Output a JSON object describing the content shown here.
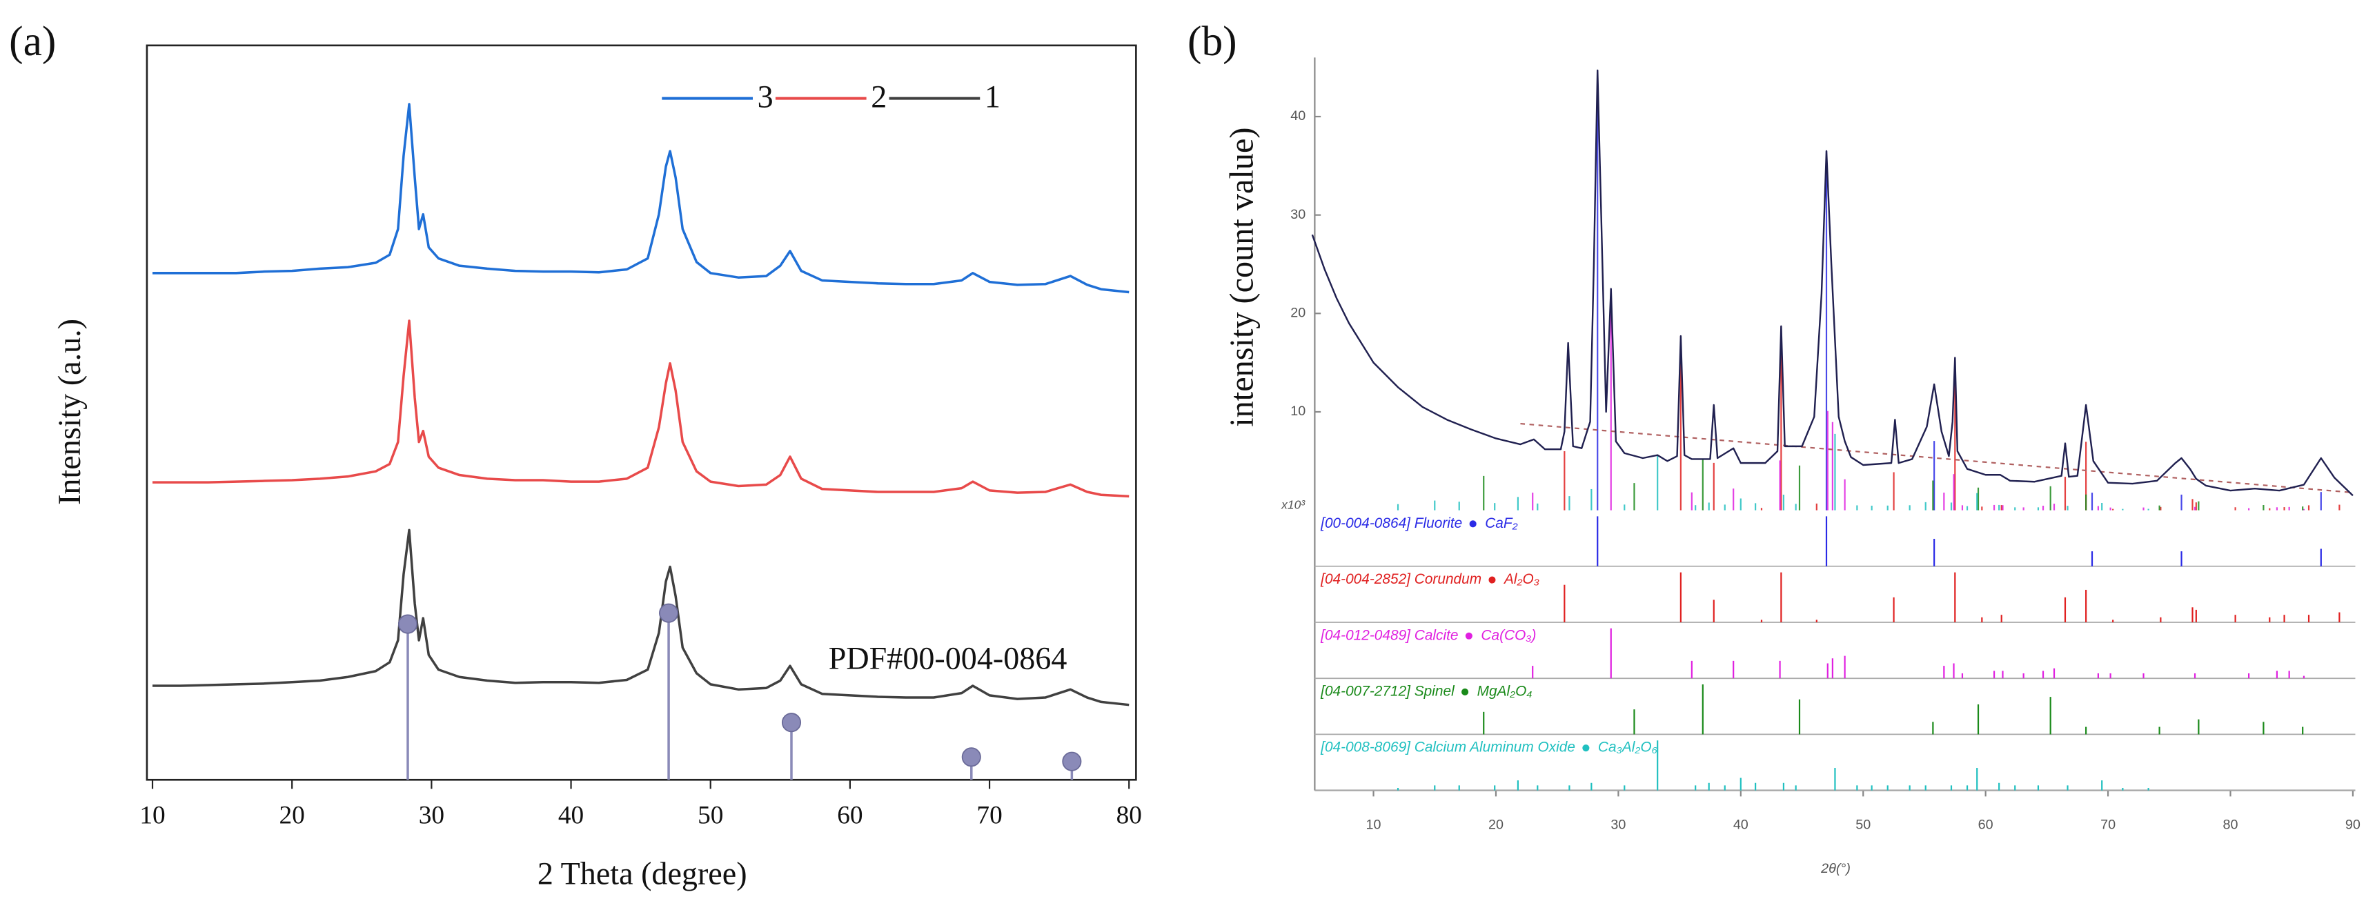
{
  "chart_data": [
    {
      "type": "line",
      "panel_label": "(a)",
      "xlabel": "2 Theta (degree)",
      "ylabel": "Intensity (a.u.)",
      "annotation": "PDF#00-004-0864",
      "xlim": [
        9.6,
        80.5
      ],
      "xticks": [
        10,
        20,
        30,
        40,
        50,
        60,
        70,
        80
      ],
      "ylim": [
        0,
        100
      ],
      "x": [
        10,
        12,
        14,
        16,
        18,
        20,
        22,
        24,
        26,
        27,
        27.6,
        28,
        28.4,
        28.8,
        29.1,
        29.4,
        29.8,
        30.5,
        32,
        34,
        36,
        38,
        40,
        42,
        44,
        45.5,
        46.3,
        46.8,
        47.1,
        47.5,
        48,
        49,
        50,
        52,
        54,
        55,
        55.7,
        56.5,
        58,
        60,
        62,
        64,
        66,
        68,
        68.8,
        70,
        72,
        74,
        75.8,
        77,
        78,
        80
      ],
      "series": [
        {
          "name": "3",
          "color": "#1f6fd6",
          "values": [
            69,
            69,
            69,
            69,
            69.2,
            69.3,
            69.6,
            69.8,
            70.4,
            71.5,
            75,
            85,
            92,
            82,
            75,
            77,
            72.5,
            71,
            70,
            69.6,
            69.3,
            69.2,
            69.2,
            69.1,
            69.5,
            71,
            77,
            83.5,
            85.6,
            82,
            75,
            70.5,
            69,
            68.4,
            68.6,
            70,
            72,
            69.3,
            68,
            67.8,
            67.6,
            67.5,
            67.5,
            68,
            69,
            67.8,
            67.4,
            67.5,
            68.6,
            67.4,
            66.8,
            66.4
          ]
        },
        {
          "name": "2",
          "color": "#e84a4a",
          "values": [
            40.5,
            40.5,
            40.5,
            40.6,
            40.7,
            40.8,
            41,
            41.3,
            42,
            43,
            46,
            55,
            62.5,
            52,
            46,
            47.5,
            44,
            42.5,
            41.5,
            41,
            40.8,
            40.8,
            40.6,
            40.6,
            41,
            42.5,
            48,
            54,
            56.7,
            53,
            46,
            42,
            40.6,
            40,
            40.2,
            41.5,
            44,
            41,
            39.6,
            39.4,
            39.2,
            39.2,
            39.2,
            39.7,
            40.6,
            39.4,
            39.1,
            39.2,
            40.2,
            39.2,
            38.8,
            38.6
          ]
        },
        {
          "name": "1",
          "color": "#404040",
          "values": [
            12.8,
            12.8,
            12.9,
            13,
            13.1,
            13.3,
            13.5,
            14,
            14.8,
            16,
            19,
            28,
            34,
            24,
            19,
            22,
            17,
            15,
            14,
            13.5,
            13.2,
            13.3,
            13.3,
            13.2,
            13.6,
            15,
            20,
            27,
            29,
            25,
            18,
            14.5,
            13,
            12.3,
            12.5,
            13.5,
            15.5,
            13,
            11.7,
            11.5,
            11.3,
            11.2,
            11.2,
            11.8,
            12.8,
            11.5,
            11,
            11.2,
            12.3,
            11.2,
            10.6,
            10.2
          ]
        }
      ],
      "reference": {
        "color": "#8a8ab8",
        "x": [
          28.3,
          47.0,
          55.8,
          68.7,
          75.9
        ],
        "values": [
          21.2,
          22.7,
          7.8,
          3.1,
          2.5
        ]
      }
    },
    {
      "type": "line",
      "panel_label": "(b)",
      "xlabel": "2θ(°)",
      "ylabel": "intensity (count value)",
      "y_multiplier_label": "x10³",
      "xlim": [
        5.2,
        90.2
      ],
      "xticks": [
        10,
        20,
        30,
        40,
        50,
        60,
        70,
        80,
        90
      ],
      "ylim": [
        0,
        46
      ],
      "yticks": [
        10,
        20,
        30,
        40
      ],
      "x": [
        5,
        6,
        7,
        8,
        10,
        12,
        14,
        16,
        18,
        20,
        22,
        23.1,
        24,
        25.3,
        25.6,
        25.9,
        26.3,
        27,
        27.7,
        28.0,
        28.3,
        28.6,
        29.0,
        29.4,
        29.8,
        30.5,
        32,
        33.2,
        34,
        34.8,
        35.1,
        35.4,
        36,
        37.5,
        37.8,
        38.1,
        39.4,
        40,
        42,
        43.0,
        43.3,
        43.6,
        45,
        46,
        46.6,
        47.0,
        47.4,
        48,
        48.5,
        49,
        50,
        52.3,
        52.6,
        52.9,
        54,
        55.2,
        55.8,
        56.4,
        57,
        57.3,
        57.5,
        57.7,
        58.5,
        60,
        61.2,
        62,
        64,
        66.2,
        66.5,
        66.8,
        67.5,
        68.2,
        68.8,
        70,
        72,
        74,
        75.5,
        76,
        76.7,
        77.2,
        78,
        80,
        82,
        84,
        86,
        87.4,
        88.5,
        90
      ],
      "series": [
        {
          "color": "#202050",
          "values": [
            28,
            24.5,
            21.5,
            19,
            15,
            12.5,
            10.5,
            9.2,
            8.2,
            7.3,
            6.7,
            7.2,
            6.2,
            6.2,
            8,
            17,
            6.5,
            6.3,
            9,
            25,
            44.7,
            30,
            10,
            22.5,
            7,
            5.8,
            5.3,
            5.6,
            5.0,
            5.5,
            17.7,
            5.6,
            5.2,
            5.2,
            10.7,
            5.3,
            6.3,
            4.8,
            4.8,
            6,
            18.7,
            6.5,
            6.5,
            9.5,
            22,
            36.5,
            25,
            9.5,
            7,
            5.4,
            4.6,
            4.8,
            9.2,
            4.8,
            5.2,
            8.5,
            12.8,
            8,
            5.5,
            9,
            15.5,
            6,
            4.2,
            3.6,
            3.6,
            3,
            2.9,
            3.5,
            6.8,
            3.4,
            3.5,
            10.7,
            5,
            2.8,
            2.7,
            3,
            4.8,
            5.3,
            4.2,
            3.2,
            2.5,
            2,
            2.2,
            2,
            2.6,
            5.3,
            3.3,
            1.5
          ]
        }
      ],
      "baseline": {
        "color": "#b06060",
        "x": [
          22,
          90
        ],
        "values": [
          8.8,
          1.8
        ]
      },
      "strip_ylim": [
        0,
        100
      ],
      "phases": [
        {
          "label": "[00-004-0864] Fluorite",
          "formula": "CaF₂",
          "color": "#2a2ae6",
          "x": [
            28.3,
            47.0,
            55.8,
            68.7,
            76.0,
            87.4
          ],
          "values": [
            100,
            100,
            55,
            30,
            30,
            35
          ]
        },
        {
          "label": "[04-004-2852] Corundum",
          "formula": "Al₂O₃",
          "color": "#e02020",
          "x": [
            25.6,
            35.1,
            37.8,
            41.7,
            43.3,
            46.2,
            52.5,
            57.5,
            59.7,
            61.3,
            66.5,
            68.2,
            70.4,
            74.3,
            76.9,
            77.2,
            80.4,
            83.2,
            84.4,
            86.4,
            88.9
          ],
          "values": [
            75,
            100,
            45,
            5,
            100,
            5,
            50,
            100,
            10,
            15,
            50,
            65,
            5,
            10,
            30,
            25,
            15,
            10,
            15,
            15,
            20
          ]
        },
        {
          "label": "[04-012-0489] Calcite",
          "formula": "Ca(CO₃)",
          "color": "#e020e0",
          "x": [
            23.0,
            29.4,
            36.0,
            39.4,
            43.2,
            47.1,
            47.5,
            48.5,
            56.6,
            57.4,
            58.1,
            60.7,
            61.4,
            63.1,
            64.7,
            65.6,
            69.2,
            70.2,
            72.9,
            77.1,
            81.5,
            83.8,
            84.8,
            86.0
          ],
          "values": [
            25,
            100,
            35,
            35,
            35,
            30,
            40,
            45,
            25,
            30,
            10,
            15,
            15,
            10,
            15,
            20,
            10,
            10,
            10,
            10,
            10,
            15,
            15,
            5
          ]
        },
        {
          "label": "[04-007-2712] Spinel",
          "formula": "MgAl₂O₄",
          "color": "#1a8a1a",
          "x": [
            19.0,
            31.3,
            36.9,
            44.8,
            55.7,
            59.4,
            65.3,
            68.2,
            74.2,
            77.4,
            82.7,
            85.9
          ],
          "values": [
            45,
            50,
            100,
            70,
            25,
            60,
            75,
            15,
            15,
            30,
            25,
            15
          ]
        },
        {
          "label": "[04-008-8069] Calcium Aluminum Oxide",
          "formula": "Ca₃Al₂O₆",
          "color": "#20c0c0",
          "x": [
            12.0,
            15.0,
            17.0,
            19.9,
            21.8,
            23.4,
            26.0,
            27.8,
            30.5,
            33.2,
            36.3,
            37.4,
            38.7,
            40.0,
            41.2,
            43.5,
            44.5,
            47.7,
            49.5,
            50.7,
            52.0,
            53.8,
            55.1,
            57.2,
            58.5,
            59.3,
            61.1,
            62.4,
            64.3,
            66.7,
            69.5,
            71.2,
            73.3
          ],
          "values": [
            5,
            10,
            10,
            10,
            20,
            10,
            10,
            15,
            10,
            100,
            10,
            15,
            10,
            25,
            15,
            15,
            10,
            45,
            10,
            10,
            10,
            10,
            10,
            10,
            10,
            45,
            15,
            10,
            10,
            10,
            20,
            5,
            5
          ]
        }
      ]
    }
  ]
}
